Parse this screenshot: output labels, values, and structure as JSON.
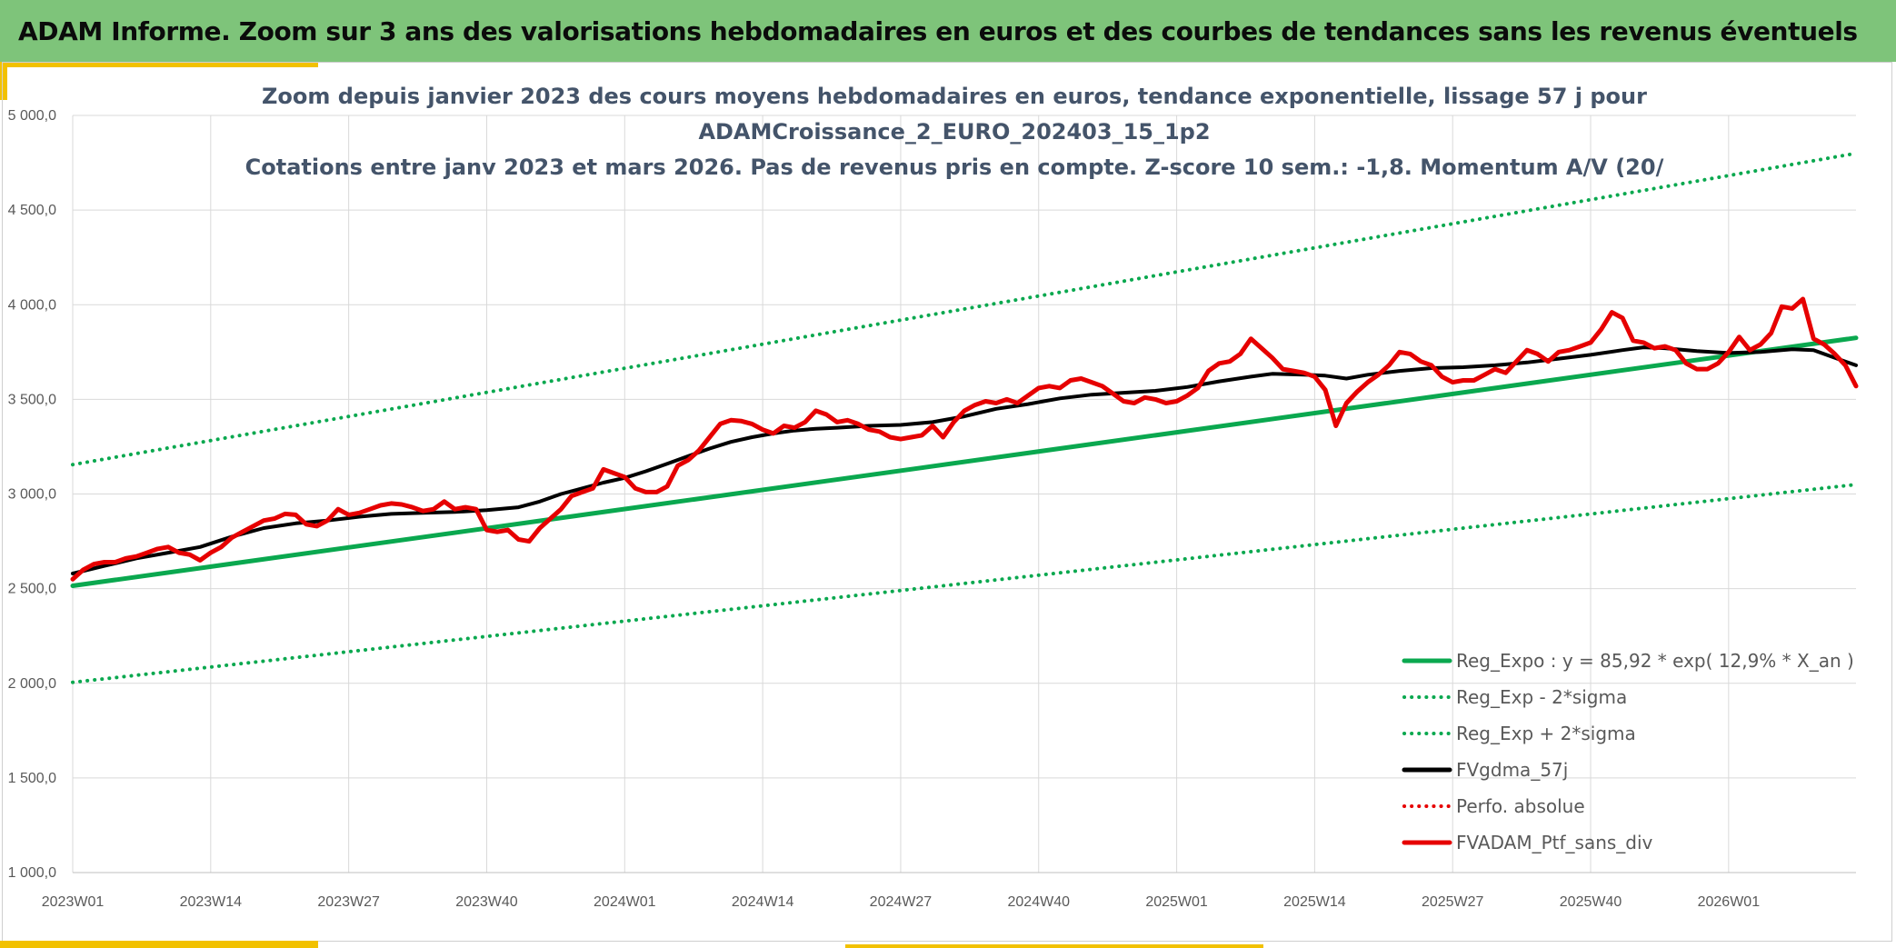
{
  "header": {
    "title": "ADAM Informe. Zoom sur 3 ans des valorisations hebdomadaires en euros et des courbes de tendances sans les revenus éventuels"
  },
  "colors": {
    "header_bg": "#7ec47a",
    "accent": "#f2c100",
    "trend_green": "#0aa84f",
    "black": "#000000",
    "red": "#e60000"
  },
  "chart_data": {
    "type": "line",
    "title_lines": [
      "Zoom depuis janvier 2023 des cours moyens hebdomadaires en euros, tendance exponentielle, lissage 57 j pour",
      "ADAMCroissance_2_EURO_202403_15_1p2",
      "Cotations entre janv 2023 et mars 2026. Pas de revenus pris en compte. Z-score 10 sem.: -1,8. Momentum A/V (20/"
    ],
    "ylim": [
      1000,
      5000
    ],
    "y_ticks": [
      {
        "value": 1000,
        "label": "1 000,0"
      },
      {
        "value": 1500,
        "label": "1 500,0"
      },
      {
        "value": 2000,
        "label": "2 000,0"
      },
      {
        "value": 2500,
        "label": "2 500,0"
      },
      {
        "value": 3000,
        "label": "3 000,0"
      },
      {
        "value": 3500,
        "label": "3 500,0"
      },
      {
        "value": 4000,
        "label": "4 000,0"
      },
      {
        "value": 4500,
        "label": "4 500,0"
      },
      {
        "value": 5000,
        "label": "5 000,0"
      }
    ],
    "x_range": [
      0,
      168
    ],
    "x_ticks": [
      {
        "week": 0,
        "label": "2023W01"
      },
      {
        "week": 13,
        "label": "2023W14"
      },
      {
        "week": 26,
        "label": "2023W27"
      },
      {
        "week": 39,
        "label": "2023W40"
      },
      {
        "week": 52,
        "label": "2024W01"
      },
      {
        "week": 65,
        "label": "2024W14"
      },
      {
        "week": 78,
        "label": "2024W27"
      },
      {
        "week": 91,
        "label": "2024W40"
      },
      {
        "week": 104,
        "label": "2025W01"
      },
      {
        "week": 117,
        "label": "2025W14"
      },
      {
        "week": 130,
        "label": "2025W27"
      },
      {
        "week": 143,
        "label": "2025W40"
      },
      {
        "week": 156,
        "label": "2026W01"
      }
    ],
    "series": [
      {
        "name": "Reg_Expo : y = 85,92 * exp( 12,9% *  X_an )",
        "style": "solid",
        "color": "#0aa84f",
        "points": [
          [
            0,
            2515
          ],
          [
            168,
            3825
          ]
        ]
      },
      {
        "name": "Reg_Exp - 2*sigma",
        "style": "dotted",
        "color": "#0aa84f",
        "points": [
          [
            0,
            2005
          ],
          [
            168,
            3050
          ]
        ]
      },
      {
        "name": "Reg_Exp + 2*sigma",
        "style": "dotted",
        "color": "#0aa84f",
        "points": [
          [
            0,
            3155
          ],
          [
            168,
            4800
          ]
        ]
      },
      {
        "name": "FVgdma_57j",
        "style": "solid",
        "color": "#000000",
        "points": [
          [
            0,
            2580
          ],
          [
            3,
            2620
          ],
          [
            6,
            2660
          ],
          [
            9,
            2690
          ],
          [
            12,
            2720
          ],
          [
            15,
            2775
          ],
          [
            18,
            2820
          ],
          [
            21,
            2845
          ],
          [
            24,
            2860
          ],
          [
            27,
            2880
          ],
          [
            30,
            2895
          ],
          [
            33,
            2900
          ],
          [
            36,
            2905
          ],
          [
            39,
            2915
          ],
          [
            42,
            2930
          ],
          [
            44,
            2960
          ],
          [
            46,
            3000
          ],
          [
            48,
            3030
          ],
          [
            50,
            3060
          ],
          [
            52,
            3085
          ],
          [
            54,
            3120
          ],
          [
            56,
            3160
          ],
          [
            58,
            3200
          ],
          [
            60,
            3240
          ],
          [
            62,
            3275
          ],
          [
            64,
            3300
          ],
          [
            66,
            3320
          ],
          [
            68,
            3335
          ],
          [
            70,
            3345
          ],
          [
            72,
            3350
          ],
          [
            75,
            3360
          ],
          [
            78,
            3365
          ],
          [
            81,
            3380
          ],
          [
            84,
            3410
          ],
          [
            87,
            3450
          ],
          [
            90,
            3475
          ],
          [
            93,
            3505
          ],
          [
            96,
            3525
          ],
          [
            99,
            3535
          ],
          [
            102,
            3545
          ],
          [
            105,
            3565
          ],
          [
            108,
            3595
          ],
          [
            111,
            3620
          ],
          [
            113,
            3635
          ],
          [
            116,
            3630
          ],
          [
            118,
            3625
          ],
          [
            120,
            3610
          ],
          [
            122,
            3630
          ],
          [
            125,
            3650
          ],
          [
            128,
            3665
          ],
          [
            131,
            3670
          ],
          [
            134,
            3680
          ],
          [
            137,
            3695
          ],
          [
            140,
            3715
          ],
          [
            143,
            3735
          ],
          [
            146,
            3760
          ],
          [
            148,
            3775
          ],
          [
            150,
            3770
          ],
          [
            153,
            3755
          ],
          [
            156,
            3745
          ],
          [
            159,
            3750
          ],
          [
            162,
            3765
          ],
          [
            164,
            3760
          ],
          [
            166,
            3720
          ],
          [
            168,
            3680
          ]
        ]
      },
      {
        "name": "Perfo. absolue",
        "style": "dotted",
        "color": "#e60000",
        "points": []
      },
      {
        "name": "FVADAM_Ptf_sans_div",
        "style": "solid",
        "color": "#e60000",
        "points": [
          [
            0,
            2550
          ],
          [
            1,
            2600
          ],
          [
            2,
            2630
          ],
          [
            3,
            2640
          ],
          [
            4,
            2640
          ],
          [
            5,
            2660
          ],
          [
            6,
            2670
          ],
          [
            7,
            2690
          ],
          [
            8,
            2710
          ],
          [
            9,
            2720
          ],
          [
            10,
            2690
          ],
          [
            11,
            2680
          ],
          [
            12,
            2650
          ],
          [
            13,
            2690
          ],
          [
            14,
            2720
          ],
          [
            15,
            2770
          ],
          [
            16,
            2800
          ],
          [
            17,
            2830
          ],
          [
            18,
            2860
          ],
          [
            19,
            2870
          ],
          [
            20,
            2895
          ],
          [
            21,
            2890
          ],
          [
            22,
            2840
          ],
          [
            23,
            2830
          ],
          [
            24,
            2860
          ],
          [
            25,
            2920
          ],
          [
            26,
            2890
          ],
          [
            27,
            2900
          ],
          [
            28,
            2920
          ],
          [
            29,
            2940
          ],
          [
            30,
            2950
          ],
          [
            31,
            2945
          ],
          [
            32,
            2930
          ],
          [
            33,
            2910
          ],
          [
            34,
            2920
          ],
          [
            35,
            2960
          ],
          [
            36,
            2920
          ],
          [
            37,
            2930
          ],
          [
            38,
            2920
          ],
          [
            39,
            2810
          ],
          [
            40,
            2800
          ],
          [
            41,
            2810
          ],
          [
            42,
            2760
          ],
          [
            43,
            2750
          ],
          [
            44,
            2820
          ],
          [
            45,
            2870
          ],
          [
            46,
            2920
          ],
          [
            47,
            2990
          ],
          [
            48,
            3010
          ],
          [
            49,
            3030
          ],
          [
            50,
            3130
          ],
          [
            51,
            3110
          ],
          [
            52,
            3090
          ],
          [
            53,
            3030
          ],
          [
            54,
            3010
          ],
          [
            55,
            3010
          ],
          [
            56,
            3040
          ],
          [
            57,
            3150
          ],
          [
            58,
            3180
          ],
          [
            59,
            3230
          ],
          [
            60,
            3300
          ],
          [
            61,
            3370
          ],
          [
            62,
            3390
          ],
          [
            63,
            3385
          ],
          [
            64,
            3370
          ],
          [
            65,
            3340
          ],
          [
            66,
            3320
          ],
          [
            67,
            3360
          ],
          [
            68,
            3350
          ],
          [
            69,
            3380
          ],
          [
            70,
            3440
          ],
          [
            71,
            3420
          ],
          [
            72,
            3380
          ],
          [
            73,
            3390
          ],
          [
            74,
            3370
          ],
          [
            75,
            3340
          ],
          [
            76,
            3330
          ],
          [
            77,
            3300
          ],
          [
            78,
            3290
          ],
          [
            79,
            3300
          ],
          [
            80,
            3310
          ],
          [
            81,
            3360
          ],
          [
            82,
            3300
          ],
          [
            83,
            3380
          ],
          [
            84,
            3440
          ],
          [
            85,
            3470
          ],
          [
            86,
            3490
          ],
          [
            87,
            3480
          ],
          [
            88,
            3500
          ],
          [
            89,
            3480
          ],
          [
            90,
            3520
          ],
          [
            91,
            3560
          ],
          [
            92,
            3570
          ],
          [
            93,
            3560
          ],
          [
            94,
            3600
          ],
          [
            95,
            3610
          ],
          [
            96,
            3590
          ],
          [
            97,
            3570
          ],
          [
            98,
            3530
          ],
          [
            99,
            3490
          ],
          [
            100,
            3480
          ],
          [
            101,
            3510
          ],
          [
            102,
            3500
          ],
          [
            103,
            3480
          ],
          [
            104,
            3490
          ],
          [
            105,
            3520
          ],
          [
            106,
            3560
          ],
          [
            107,
            3650
          ],
          [
            108,
            3690
          ],
          [
            109,
            3700
          ],
          [
            110,
            3740
          ],
          [
            111,
            3820
          ],
          [
            112,
            3770
          ],
          [
            113,
            3720
          ],
          [
            114,
            3660
          ],
          [
            115,
            3650
          ],
          [
            116,
            3640
          ],
          [
            117,
            3620
          ],
          [
            118,
            3550
          ],
          [
            119,
            3360
          ],
          [
            120,
            3480
          ],
          [
            121,
            3540
          ],
          [
            122,
            3590
          ],
          [
            123,
            3630
          ],
          [
            124,
            3680
          ],
          [
            125,
            3750
          ],
          [
            126,
            3740
          ],
          [
            127,
            3700
          ],
          [
            128,
            3680
          ],
          [
            129,
            3620
          ],
          [
            130,
            3590
          ],
          [
            131,
            3600
          ],
          [
            132,
            3600
          ],
          [
            133,
            3630
          ],
          [
            134,
            3660
          ],
          [
            135,
            3640
          ],
          [
            136,
            3700
          ],
          [
            137,
            3760
          ],
          [
            138,
            3740
          ],
          [
            139,
            3700
          ],
          [
            140,
            3750
          ],
          [
            141,
            3760
          ],
          [
            142,
            3780
          ],
          [
            143,
            3800
          ],
          [
            144,
            3870
          ],
          [
            145,
            3960
          ],
          [
            146,
            3930
          ],
          [
            147,
            3810
          ],
          [
            148,
            3800
          ],
          [
            149,
            3770
          ],
          [
            150,
            3780
          ],
          [
            151,
            3760
          ],
          [
            152,
            3690
          ],
          [
            153,
            3660
          ],
          [
            154,
            3660
          ],
          [
            155,
            3690
          ],
          [
            156,
            3750
          ],
          [
            157,
            3830
          ],
          [
            158,
            3760
          ],
          [
            159,
            3790
          ],
          [
            160,
            3850
          ],
          [
            161,
            3990
          ],
          [
            162,
            3980
          ],
          [
            163,
            4030
          ],
          [
            164,
            3820
          ],
          [
            165,
            3790
          ],
          [
            166,
            3740
          ],
          [
            167,
            3680
          ],
          [
            168,
            3570
          ]
        ]
      }
    ]
  }
}
